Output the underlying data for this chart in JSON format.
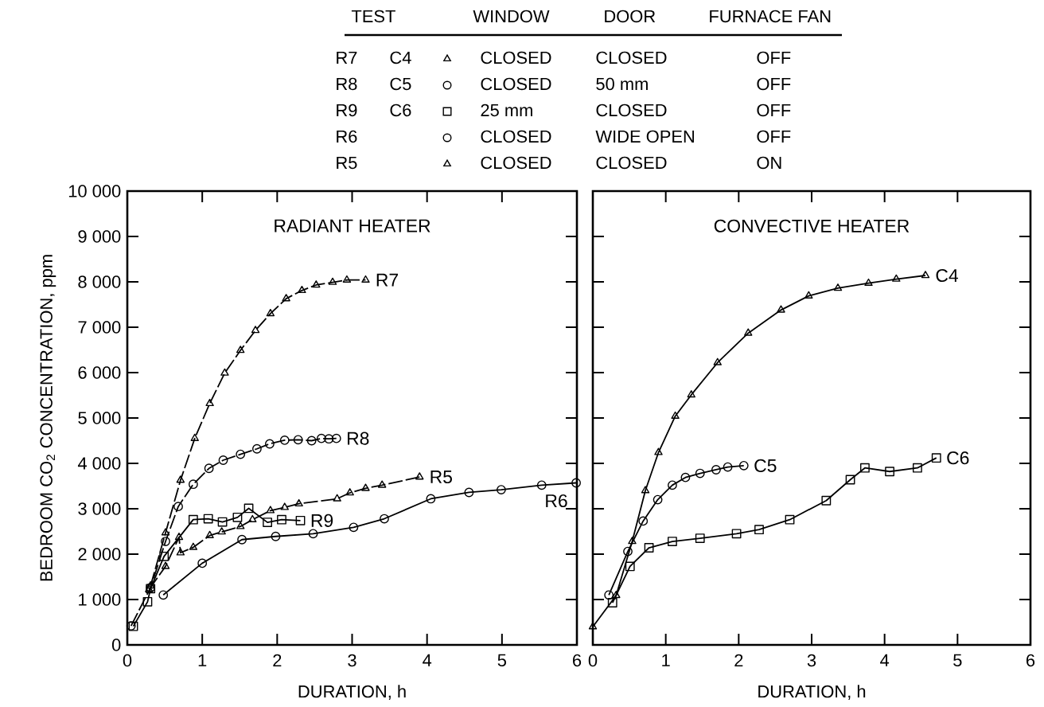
{
  "chart_data": [
    {
      "type": "other",
      "categories": [
        "TEST",
        "WINDOW",
        "DOOR",
        "FURNACE FAN"
      ],
      "cell_labels": [
        [
          "R7",
          "C4",
          "CLOSED",
          "CLOSED",
          "OFF"
        ],
        [
          "R8",
          "C5",
          "CLOSED",
          "50 mm",
          "OFF"
        ],
        [
          "R9",
          "C6",
          "25 mm",
          "CLOSED",
          "OFF"
        ],
        [
          "R6",
          null,
          "CLOSED",
          "WIDE OPEN",
          "OFF"
        ],
        [
          "R5",
          null,
          "CLOSED",
          "CLOSED",
          "ON"
        ]
      ]
    },
    {
      "type": "line",
      "title": "RADIANT HEATER",
      "xlabel": "DURATION, h",
      "ylabel": "BEDROOM CO$_{2}$ CONCENTRATION, ppm",
      "xlim": [
        0,
        6
      ],
      "ylim": [
        0,
        10000
      ],
      "xticks": [
        0,
        1,
        2,
        3,
        4,
        5,
        6
      ],
      "yticks": [
        0,
        {
          "value": 1000,
          "label": "1 000"
        },
        {
          "value": 2000,
          "label": "2 000"
        },
        {
          "value": 3000,
          "label": "3 000"
        },
        {
          "value": 4000,
          "label": "4 000"
        },
        {
          "value": 5000,
          "label": "5 000"
        },
        {
          "value": 6000,
          "label": "6 000"
        },
        {
          "value": 7000,
          "label": "7 000"
        },
        {
          "value": 8000,
          "label": "8 000"
        },
        {
          "value": 9000,
          "label": "9 000"
        },
        {
          "value": 10000,
          "label": "10 000"
        }
      ],
      "series": [
        {
          "name": "R7",
          "color": "#000000",
          "marker": "triangle",
          "line_style": "dashed",
          "x": [
            0.31,
            0.51,
            0.71,
            0.9,
            1.1,
            1.3,
            1.51,
            1.71,
            1.91,
            2.12,
            2.33,
            2.52,
            2.74,
            2.93,
            3.18
          ],
          "values": [
            1300,
            2470,
            3630,
            4550,
            5320,
            5990,
            6490,
            6930,
            7300,
            7630,
            7810,
            7930,
            7990,
            8040,
            8040
          ]
        },
        {
          "name": "R8",
          "color": "#000000",
          "marker": "circle",
          "line_style": "dashed",
          "x": [
            0.05,
            0.31,
            0.51,
            0.68,
            0.88,
            1.09,
            1.28,
            1.51,
            1.73,
            1.9,
            2.1,
            2.28,
            2.46,
            2.59,
            2.69,
            2.79
          ],
          "values": [
            420,
            1260,
            2280,
            3050,
            3540,
            3890,
            4070,
            4200,
            4320,
            4430,
            4510,
            4520,
            4500,
            4550,
            4540,
            4550
          ]
        },
        {
          "name": "R9",
          "color": "#000000",
          "marker": "square",
          "line_style": "solid",
          "x": [
            0.08,
            0.27,
            0.31,
            0.49,
            0.88,
            1.08,
            1.27,
            1.47,
            1.62,
            1.87,
            2.06,
            2.31
          ],
          "values": [
            410,
            950,
            1240,
            1950,
            2760,
            2780,
            2710,
            2810,
            3010,
            2700,
            2760,
            2740
          ]
        },
        {
          "name": "R6",
          "color": "#000000",
          "marker": "circle",
          "line_style": "solid",
          "x": [
            0.48,
            1.0,
            1.53,
            1.98,
            2.48,
            3.02,
            3.43,
            4.05,
            4.56,
            4.99,
            5.53,
            5.99
          ],
          "values": [
            1100,
            1800,
            2320,
            2390,
            2450,
            2590,
            2780,
            3220,
            3360,
            3420,
            3520,
            3570
          ]
        },
        {
          "name": "R5",
          "color": "#000000",
          "marker": "triangle",
          "line_style": "dashed",
          "x": [
            0.29,
            0.51,
            0.69,
            0.71,
            0.88,
            1.1,
            1.26,
            1.51,
            1.67,
            1.91,
            2.1,
            2.29,
            2.8,
            2.97,
            3.18,
            3.4,
            3.9
          ],
          "values": [
            1220,
            1730,
            2370,
            2030,
            2150,
            2410,
            2490,
            2610,
            2760,
            2960,
            3030,
            3110,
            3220,
            3350,
            3450,
            3520,
            3700
          ]
        }
      ]
    },
    {
      "type": "line",
      "title": "CONVECTIVE HEATER",
      "xlabel": "DURATION, h",
      "tick_labels": "x",
      "xlim": [
        0,
        6
      ],
      "ylim": [
        0,
        10000
      ],
      "xticks": [
        0,
        1,
        2,
        3,
        4,
        5,
        6
      ],
      "yticks": [
        {
          "value": 0,
          "label": null
        },
        {
          "value": 1000,
          "label": null
        },
        {
          "value": 2000,
          "label": null
        },
        {
          "value": 3000,
          "label": null
        },
        {
          "value": 4000,
          "label": null
        },
        {
          "value": 5000,
          "label": null
        },
        {
          "value": 6000,
          "label": null
        },
        {
          "value": 7000,
          "label": null
        },
        {
          "value": 8000,
          "label": null
        },
        {
          "value": 9000,
          "label": null
        },
        {
          "value": 10000,
          "label": null
        }
      ],
      "series": [
        {
          "name": "C4",
          "color": "#000000",
          "marker": "triangle",
          "line_style": "solid",
          "x": [
            0.0,
            0.32,
            0.54,
            0.72,
            0.9,
            1.13,
            1.35,
            1.71,
            2.13,
            2.58,
            2.96,
            3.36,
            3.78,
            4.16,
            4.56
          ],
          "values": [
            400,
            1090,
            2280,
            3400,
            4240,
            5040,
            5510,
            6220,
            6870,
            7380,
            7690,
            7860,
            7970,
            8060,
            8140
          ]
        },
        {
          "name": "C5",
          "color": "#000000",
          "marker": "circle",
          "line_style": "solid",
          "x": [
            0.22,
            0.48,
            0.69,
            0.89,
            1.09,
            1.27,
            1.47,
            1.69,
            1.85,
            2.07
          ],
          "values": [
            1100,
            2060,
            2730,
            3200,
            3520,
            3690,
            3780,
            3860,
            3920,
            3950
          ]
        },
        {
          "name": "C6",
          "color": "#000000",
          "marker": "square",
          "line_style": "solid",
          "x": [
            0.27,
            0.51,
            0.77,
            1.09,
            1.47,
            1.97,
            2.28,
            2.7,
            3.2,
            3.53,
            3.73,
            4.07,
            4.45,
            4.71
          ],
          "values": [
            930,
            1730,
            2140,
            2280,
            2350,
            2450,
            2540,
            2760,
            3180,
            3640,
            3900,
            3820,
            3900,
            4120
          ]
        }
      ]
    }
  ]
}
